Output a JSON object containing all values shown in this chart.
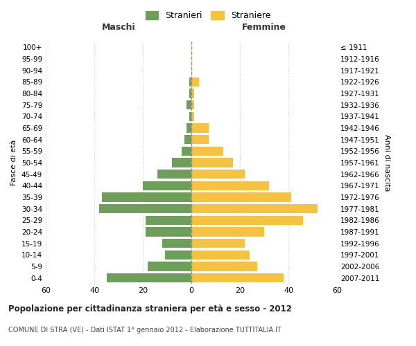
{
  "age_groups": [
    "0-4",
    "5-9",
    "10-14",
    "15-19",
    "20-24",
    "25-29",
    "30-34",
    "35-39",
    "40-44",
    "45-49",
    "50-54",
    "55-59",
    "60-64",
    "65-69",
    "70-74",
    "75-79",
    "80-84",
    "85-89",
    "90-94",
    "95-99",
    "100+"
  ],
  "birth_years": [
    "2007-2011",
    "2002-2006",
    "1997-2001",
    "1992-1996",
    "1987-1991",
    "1982-1986",
    "1977-1981",
    "1972-1976",
    "1967-1971",
    "1962-1966",
    "1957-1961",
    "1952-1956",
    "1947-1951",
    "1942-1946",
    "1937-1941",
    "1932-1936",
    "1927-1931",
    "1922-1926",
    "1917-1921",
    "1912-1916",
    "≤ 1911"
  ],
  "maschi": [
    35,
    18,
    11,
    12,
    19,
    19,
    38,
    37,
    20,
    14,
    8,
    4,
    3,
    2,
    1,
    2,
    1,
    1,
    0,
    0,
    0
  ],
  "femmine": [
    38,
    27,
    24,
    22,
    30,
    46,
    52,
    41,
    32,
    22,
    17,
    13,
    7,
    7,
    1,
    1,
    1,
    3,
    0,
    0,
    0
  ],
  "color_maschi": "#6d9e5a",
  "color_femmine": "#f5c242",
  "background_color": "#ffffff",
  "grid_color": "#cccccc",
  "title": "Popolazione per cittadinanza straniera per età e sesso - 2012",
  "subtitle": "COMUNE DI STRA (VE) - Dati ISTAT 1° gennaio 2012 - Elaborazione TUTTITALIA.IT",
  "xlabel_left": "Maschi",
  "xlabel_right": "Femmine",
  "ylabel_left": "Fasce di età",
  "ylabel_right": "Anni di nascita",
  "legend_maschi": "Stranieri",
  "legend_femmine": "Straniere",
  "xlim": 60,
  "bar_height": 0.8
}
